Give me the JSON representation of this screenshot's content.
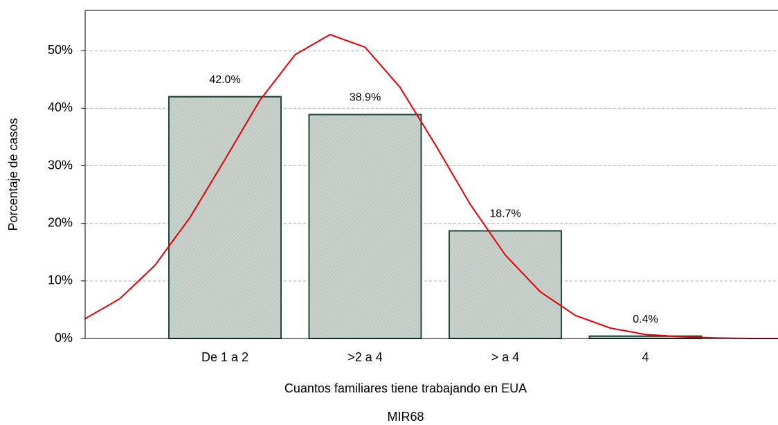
{
  "chart_data": {
    "type": "bar",
    "title": "MIR68",
    "x_label": "Cuantos familiares tiene trabajando en EUA",
    "y_label": "Porcentaje de casos",
    "categories": [
      "De 1 a 2",
      ">2 a 4",
      "> a 4",
      "4"
    ],
    "values": [
      42.0,
      38.9,
      18.7,
      0.4
    ],
    "value_labels": [
      "42.0%",
      "38.9%",
      "18.7%",
      "0.4%"
    ],
    "color": "#c9d1cd",
    "edge_color": "#1f4a40",
    "ylim": [
      0,
      57
    ],
    "yticks": [
      {
        "value": 0,
        "label": "0%"
      },
      {
        "value": 10,
        "label": "10%"
      },
      {
        "value": 20,
        "label": "20%"
      },
      {
        "value": 30,
        "label": "30%"
      },
      {
        "value": 40,
        "label": "40%"
      },
      {
        "value": 50,
        "label": "50%"
      }
    ],
    "grid": true,
    "curve": {
      "color": "#e00000",
      "x": [
        -1,
        -0.75,
        -0.5,
        -0.25,
        0,
        0.25,
        0.5,
        0.75,
        1,
        1.25,
        1.5,
        1.75,
        2,
        2.25,
        2.5,
        2.75,
        3,
        3.25,
        3.5,
        3.75,
        3.95
      ],
      "values": [
        3.4,
        6.9,
        12.7,
        21.0,
        31.1,
        41.4,
        49.3,
        52.8,
        50.6,
        43.6,
        33.7,
        23.3,
        14.5,
        8.1,
        4.0,
        1.8,
        0.7,
        0.3,
        0.1,
        0.0,
        0.0
      ]
    }
  }
}
